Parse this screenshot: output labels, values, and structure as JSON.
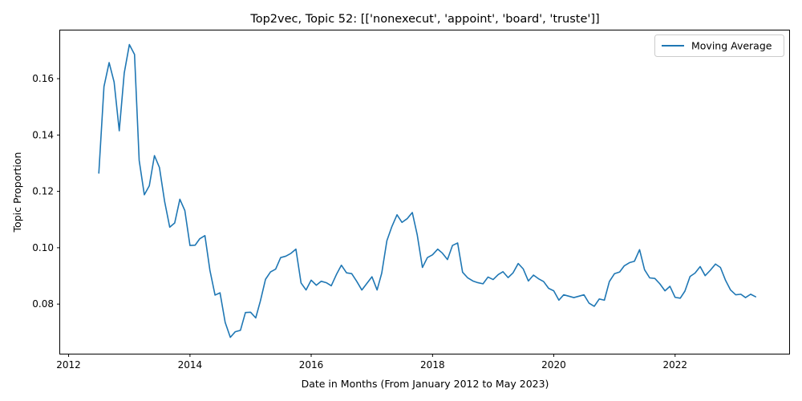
{
  "chart_data": {
    "type": "line",
    "title": "Top2vec, Topic 52: [['nonexecut', 'appoint', 'board', 'truste']]",
    "xlabel": "Date in Months (From January 2012 to May 2023)",
    "ylabel": "Topic Proportion",
    "xlim": [
      "2011-11-11",
      "2023-11-19"
    ],
    "ylim": [
      0.0624,
      0.1771
    ],
    "x_ticks": [
      {
        "value": "2012-01-01",
        "label": "2012"
      },
      {
        "value": "2014-01-01",
        "label": "2014"
      },
      {
        "value": "2016-01-01",
        "label": "2016"
      },
      {
        "value": "2018-01-01",
        "label": "2018"
      },
      {
        "value": "2020-01-01",
        "label": "2020"
      },
      {
        "value": "2022-01-01",
        "label": "2022"
      }
    ],
    "y_ticks": [
      {
        "value": 0.08,
        "label": "0.08"
      },
      {
        "value": 0.1,
        "label": "0.10"
      },
      {
        "value": 0.12,
        "label": "0.12"
      },
      {
        "value": 0.14,
        "label": "0.14"
      },
      {
        "value": 0.16,
        "label": "0.16"
      }
    ],
    "grid": false,
    "legend": {
      "position": "top-right",
      "entries": [
        "Moving Average"
      ]
    },
    "series": [
      {
        "name": "Moving Average",
        "color": "#1f77b4",
        "start": "2012-07",
        "values": [
          0.1265,
          0.1572,
          0.1657,
          0.1588,
          0.1415,
          0.162,
          0.1721,
          0.1686,
          0.131,
          0.1188,
          0.122,
          0.1327,
          0.1285,
          0.1165,
          0.1073,
          0.1088,
          0.1172,
          0.1132,
          0.1008,
          0.1009,
          0.1032,
          0.1043,
          0.092,
          0.0832,
          0.084,
          0.0735,
          0.0682,
          0.0702,
          0.0707,
          0.077,
          0.0771,
          0.0751,
          0.0811,
          0.0888,
          0.0914,
          0.0924,
          0.0965,
          0.097,
          0.098,
          0.0995,
          0.0875,
          0.085,
          0.0885,
          0.0867,
          0.0881,
          0.0876,
          0.0865,
          0.0905,
          0.0938,
          0.0911,
          0.0908,
          0.0881,
          0.085,
          0.0873,
          0.0897,
          0.085,
          0.091,
          0.1025,
          0.1075,
          0.1117,
          0.109,
          0.1103,
          0.1125,
          0.1045,
          0.093,
          0.0965,
          0.0975,
          0.0995,
          0.0981,
          0.0958,
          0.1008,
          0.1017,
          0.0913,
          0.0893,
          0.0882,
          0.0876,
          0.0872,
          0.0896,
          0.0887,
          0.0905,
          0.0915,
          0.0894,
          0.0911,
          0.0944,
          0.0925,
          0.0882,
          0.0903,
          0.089,
          0.088,
          0.0856,
          0.0847,
          0.0814,
          0.0833,
          0.0828,
          0.0823,
          0.0828,
          0.0833,
          0.0803,
          0.0792,
          0.0818,
          0.0814,
          0.088,
          0.0908,
          0.0914,
          0.0936,
          0.0947,
          0.0952,
          0.0993,
          0.0922,
          0.0893,
          0.0891,
          0.0872,
          0.0847,
          0.0863,
          0.0824,
          0.0821,
          0.0846,
          0.0898,
          0.091,
          0.0933,
          0.0901,
          0.092,
          0.0942,
          0.093,
          0.0884,
          0.085,
          0.0833,
          0.0835,
          0.0823,
          0.0835,
          0.0826
        ]
      }
    ]
  }
}
